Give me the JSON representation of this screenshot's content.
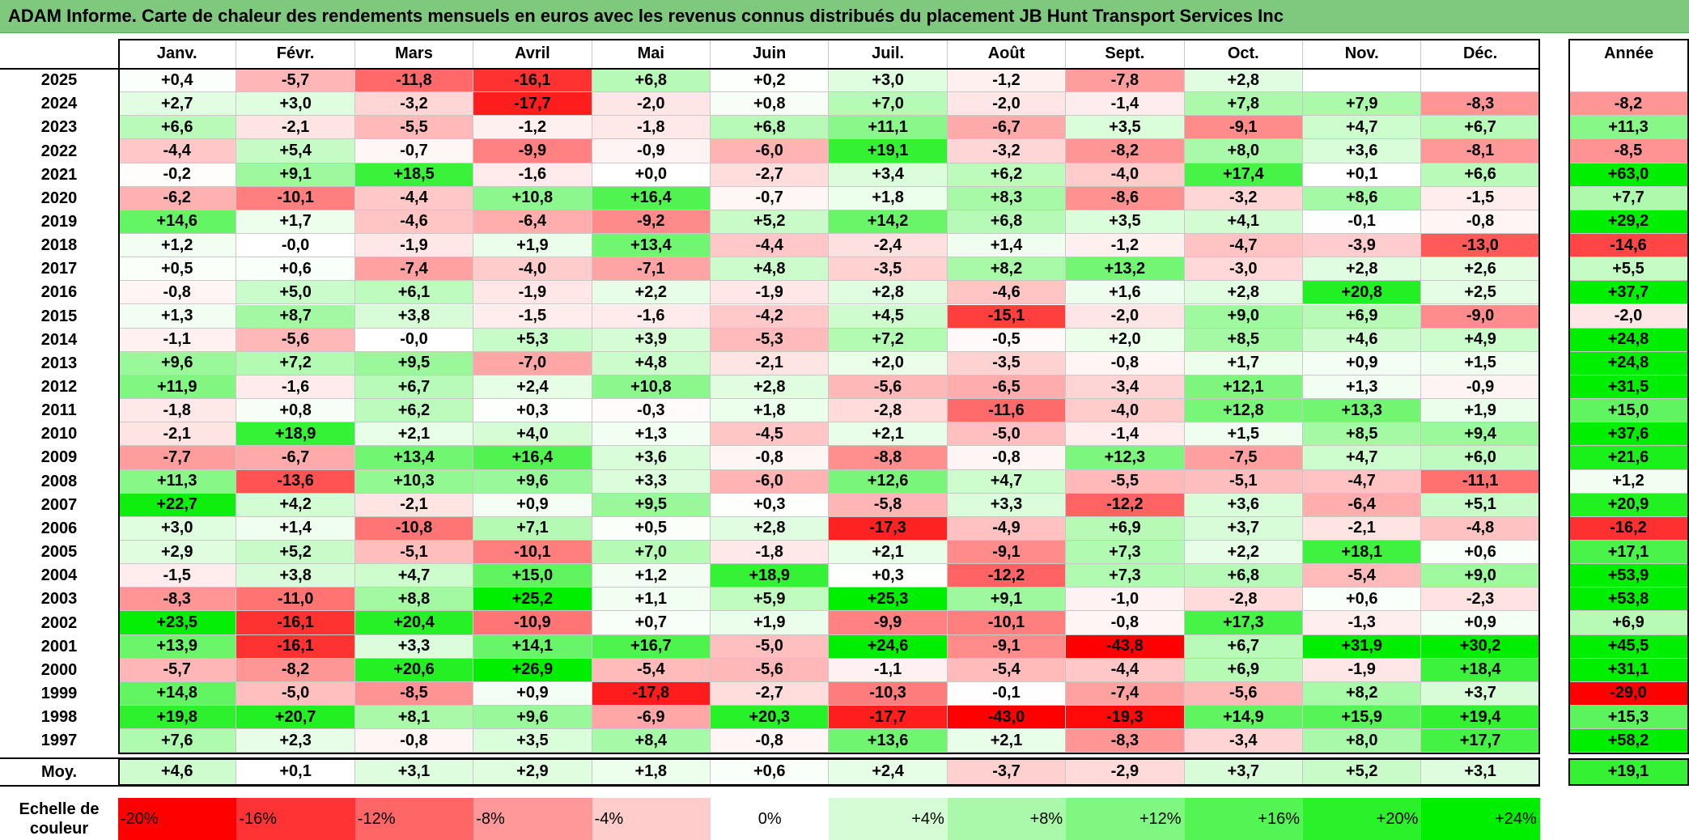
{
  "title": "ADAM Informe. Carte de chaleur des rendements mensuels en euros avec les revenus connus distribués du placement JB Hunt Transport Services Inc",
  "chart_data": {
    "type": "heatmap",
    "columns": [
      "Janv.",
      "Févr.",
      "Mars",
      "Avril",
      "Mai",
      "Juin",
      "Juil.",
      "Août",
      "Sept.",
      "Oct.",
      "Nov.",
      "Déc."
    ],
    "annual_header": "Année",
    "rows": [
      {
        "year": "2025",
        "values": [
          "+0,4",
          "-5,7",
          "-11,8",
          "-16,1",
          "+6,8",
          "+0,2",
          "+3,0",
          "-1,2",
          "-7,8",
          "+2,8",
          "",
          ""
        ],
        "annual": ""
      },
      {
        "year": "2024",
        "values": [
          "+2,7",
          "+3,0",
          "-3,2",
          "-17,7",
          "-2,0",
          "+0,8",
          "+7,0",
          "-2,0",
          "-1,4",
          "+7,8",
          "+7,9",
          "-8,3"
        ],
        "annual": "-8,2"
      },
      {
        "year": "2023",
        "values": [
          "+6,6",
          "-2,1",
          "-5,5",
          "-1,2",
          "-1,8",
          "+6,8",
          "+11,1",
          "-6,7",
          "+3,5",
          "-9,1",
          "+4,7",
          "+6,7"
        ],
        "annual": "+11,3"
      },
      {
        "year": "2022",
        "values": [
          "-4,4",
          "+5,4",
          "-0,7",
          "-9,9",
          "-0,9",
          "-6,0",
          "+19,1",
          "-3,2",
          "-8,2",
          "+8,0",
          "+3,6",
          "-8,1"
        ],
        "annual": "-8,5"
      },
      {
        "year": "2021",
        "values": [
          "-0,2",
          "+9,1",
          "+18,5",
          "-1,6",
          "+0,0",
          "-2,7",
          "+3,4",
          "+6,2",
          "-4,0",
          "+17,4",
          "+0,1",
          "+6,6"
        ],
        "annual": "+63,0"
      },
      {
        "year": "2020",
        "values": [
          "-6,2",
          "-10,1",
          "-4,4",
          "+10,8",
          "+16,4",
          "-0,7",
          "+1,8",
          "+8,3",
          "-8,6",
          "-3,2",
          "+8,6",
          "-1,5"
        ],
        "annual": "+7,7"
      },
      {
        "year": "2019",
        "values": [
          "+14,6",
          "+1,7",
          "-4,6",
          "-6,4",
          "-9,2",
          "+5,2",
          "+14,2",
          "+6,8",
          "+3,5",
          "+4,1",
          "-0,1",
          "-0,8"
        ],
        "annual": "+29,2"
      },
      {
        "year": "2018",
        "values": [
          "+1,2",
          "-0,0",
          "-1,9",
          "+1,9",
          "+13,4",
          "-4,4",
          "-2,4",
          "+1,4",
          "-1,2",
          "-4,7",
          "-3,9",
          "-13,0"
        ],
        "annual": "-14,6"
      },
      {
        "year": "2017",
        "values": [
          "+0,5",
          "+0,6",
          "-7,4",
          "-4,0",
          "-7,1",
          "+4,8",
          "-3,5",
          "+8,2",
          "+13,2",
          "-3,0",
          "+2,8",
          "+2,6"
        ],
        "annual": "+5,5"
      },
      {
        "year": "2016",
        "values": [
          "-0,8",
          "+5,0",
          "+6,1",
          "-1,9",
          "+2,2",
          "-1,9",
          "+2,8",
          "-4,6",
          "+1,6",
          "+2,8",
          "+20,8",
          "+2,5"
        ],
        "annual": "+37,7"
      },
      {
        "year": "2015",
        "values": [
          "+1,3",
          "+8,7",
          "+3,8",
          "-1,5",
          "-1,6",
          "-4,2",
          "+4,5",
          "-15,1",
          "-2,0",
          "+9,0",
          "+6,9",
          "-9,0"
        ],
        "annual": "-2,0"
      },
      {
        "year": "2014",
        "values": [
          "-1,1",
          "-5,6",
          "-0,0",
          "+5,3",
          "+3,9",
          "-5,3",
          "+7,2",
          "-0,5",
          "+2,0",
          "+8,5",
          "+4,6",
          "+4,9"
        ],
        "annual": "+24,8"
      },
      {
        "year": "2013",
        "values": [
          "+9,6",
          "+7,2",
          "+9,5",
          "-7,0",
          "+4,8",
          "-2,1",
          "+2,0",
          "-3,5",
          "-0,8",
          "+1,7",
          "+0,9",
          "+1,5"
        ],
        "annual": "+24,8"
      },
      {
        "year": "2012",
        "values": [
          "+11,9",
          "-1,6",
          "+6,7",
          "+2,4",
          "+10,8",
          "+2,8",
          "-5,6",
          "-6,5",
          "-3,4",
          "+12,1",
          "+1,3",
          "-0,9"
        ],
        "annual": "+31,5"
      },
      {
        "year": "2011",
        "values": [
          "-1,8",
          "+0,8",
          "+6,2",
          "+0,3",
          "-0,3",
          "+1,8",
          "-2,8",
          "-11,6",
          "-4,0",
          "+12,8",
          "+13,3",
          "+1,9"
        ],
        "annual": "+15,0"
      },
      {
        "year": "2010",
        "values": [
          "-2,1",
          "+18,9",
          "+2,1",
          "+4,0",
          "+1,3",
          "-4,5",
          "+2,1",
          "-5,0",
          "-1,4",
          "+1,5",
          "+8,5",
          "+9,4"
        ],
        "annual": "+37,6"
      },
      {
        "year": "2009",
        "values": [
          "-7,7",
          "-6,7",
          "+13,4",
          "+16,4",
          "+3,6",
          "-0,8",
          "-8,8",
          "-0,8",
          "+12,3",
          "-7,5",
          "+4,7",
          "+6,0"
        ],
        "annual": "+21,6"
      },
      {
        "year": "2008",
        "values": [
          "+11,3",
          "-13,6",
          "+10,3",
          "+9,6",
          "+3,3",
          "-6,0",
          "+12,6",
          "+4,7",
          "-5,5",
          "-5,1",
          "-4,7",
          "-11,1"
        ],
        "annual": "+1,2"
      },
      {
        "year": "2007",
        "values": [
          "+22,7",
          "+4,2",
          "-2,1",
          "+0,9",
          "+9,5",
          "+0,3",
          "-5,8",
          "+3,3",
          "-12,2",
          "+3,6",
          "-6,4",
          "+5,1"
        ],
        "annual": "+20,9"
      },
      {
        "year": "2006",
        "values": [
          "+3,0",
          "+1,4",
          "-10,8",
          "+7,1",
          "+0,5",
          "+2,8",
          "-17,3",
          "-4,9",
          "+6,9",
          "+3,7",
          "-2,1",
          "-4,8"
        ],
        "annual": "-16,2"
      },
      {
        "year": "2005",
        "values": [
          "+2,9",
          "+5,2",
          "-5,1",
          "-10,1",
          "+7,0",
          "-1,8",
          "+2,1",
          "-9,1",
          "+7,3",
          "+2,2",
          "+18,1",
          "+0,6"
        ],
        "annual": "+17,1"
      },
      {
        "year": "2004",
        "values": [
          "-1,5",
          "+3,8",
          "+4,7",
          "+15,0",
          "+1,2",
          "+18,9",
          "+0,3",
          "-12,2",
          "+7,3",
          "+6,8",
          "-5,4",
          "+9,0"
        ],
        "annual": "+53,9"
      },
      {
        "year": "2003",
        "values": [
          "-8,3",
          "-11,0",
          "+8,8",
          "+25,2",
          "+1,1",
          "+5,9",
          "+25,3",
          "+9,1",
          "-1,0",
          "-2,8",
          "+0,6",
          "-2,3"
        ],
        "annual": "+53,8"
      },
      {
        "year": "2002",
        "values": [
          "+23,5",
          "-16,1",
          "+20,4",
          "-10,9",
          "+0,7",
          "+1,9",
          "-9,9",
          "-10,1",
          "-0,8",
          "+17,3",
          "-1,3",
          "+0,9"
        ],
        "annual": "+6,9"
      },
      {
        "year": "2001",
        "values": [
          "+13,9",
          "-16,1",
          "+3,3",
          "+14,1",
          "+16,7",
          "-5,0",
          "+24,6",
          "-9,1",
          "-43,8",
          "+6,7",
          "+31,9",
          "+30,2"
        ],
        "annual": "+45,5"
      },
      {
        "year": "2000",
        "values": [
          "-5,7",
          "-8,2",
          "+20,6",
          "+26,9",
          "-5,4",
          "-5,6",
          "-1,1",
          "-5,4",
          "-4,4",
          "+6,9",
          "-1,9",
          "+18,4"
        ],
        "annual": "+31,1"
      },
      {
        "year": "1999",
        "values": [
          "+14,8",
          "-5,0",
          "-8,5",
          "+0,9",
          "-17,8",
          "-2,7",
          "-10,3",
          "-0,1",
          "-7,4",
          "-5,6",
          "+8,2",
          "+3,7"
        ],
        "annual": "-29,0"
      },
      {
        "year": "1998",
        "values": [
          "+19,8",
          "+20,7",
          "+8,1",
          "+9,6",
          "-6,9",
          "+20,3",
          "-17,7",
          "-43,0",
          "-19,3",
          "+14,9",
          "+15,9",
          "+19,4"
        ],
        "annual": "+15,3"
      },
      {
        "year": "1997",
        "values": [
          "+7,6",
          "+2,3",
          "-0,8",
          "+3,5",
          "+8,4",
          "-0,8",
          "+13,6",
          "+2,1",
          "-8,3",
          "-3,4",
          "+8,0",
          "+17,7"
        ],
        "annual": "+58,2"
      }
    ],
    "average": {
      "label": "Moy.",
      "values": [
        "+4,6",
        "+0,1",
        "+3,1",
        "+2,9",
        "+1,8",
        "+0,6",
        "+2,4",
        "-3,7",
        "-2,9",
        "+3,7",
        "+5,2",
        "+3,1"
      ],
      "annual": "+19,1"
    },
    "scale": {
      "label": "Echelle de couleur",
      "steps": [
        {
          "label": "-20%",
          "v": -20,
          "align": "left"
        },
        {
          "label": "-16%",
          "v": -16,
          "align": "left"
        },
        {
          "label": "-12%",
          "v": -12,
          "align": "left"
        },
        {
          "label": "-8%",
          "v": -8,
          "align": "left"
        },
        {
          "label": "-4%",
          "v": -4,
          "align": "left"
        },
        {
          "label": "0%",
          "v": 0,
          "align": "center"
        },
        {
          "label": "+4%",
          "v": 4,
          "align": "right"
        },
        {
          "label": "+8%",
          "v": 8,
          "align": "right"
        },
        {
          "label": "+12%",
          "v": 12,
          "align": "right"
        },
        {
          "label": "+16%",
          "v": 16,
          "align": "right"
        },
        {
          "label": "+20%",
          "v": 20,
          "align": "right"
        },
        {
          "label": "+24%",
          "v": 24,
          "align": "right"
        }
      ]
    },
    "colors": {
      "negative_max": "#ff0000",
      "neutral": "#ffffff",
      "positive_max": "#00ee00"
    },
    "color_range": {
      "min": -20,
      "max": 24
    }
  }
}
